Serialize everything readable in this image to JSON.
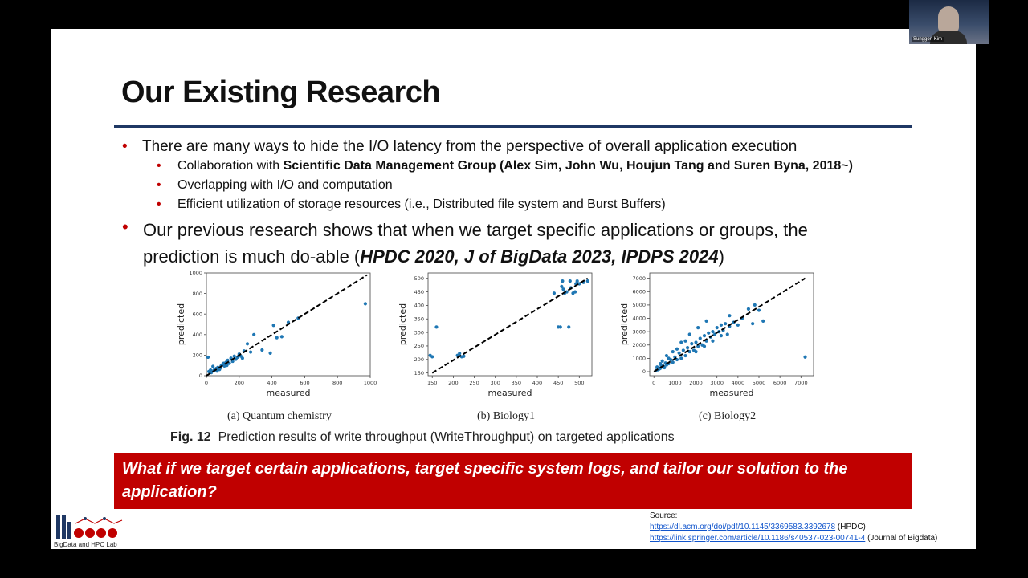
{
  "slide": {
    "title": "Our Existing Research",
    "bullets": {
      "b1": "There are many ways to hide the I/O latency from the perspective of overall application execution",
      "s1_prefix": "Collaboration with ",
      "s1_bold": "Scientific Data Management Group (Alex Sim, John Wu, Houjun Tang and Suren Byna, 2018~)",
      "s2": "Overlapping with I/O and computation",
      "s3": "Efficient utilization of storage resources (i.e., Distributed file system and Burst Buffers)",
      "b2_line1": "Our previous research shows that when we target specific applications or groups, the",
      "b2_line2_prefix": "prediction is much do-able (",
      "b2_line2_bold": "HPDC 2020, J of BigData 2023, IPDPS 2024",
      "b2_line2_suffix": ")"
    },
    "figure_caption_label": "Fig. 12",
    "figure_caption_text": "Prediction results of write throughput (WriteThroughput) on targeted applications",
    "callout": "What if we target certain applications, target specific system logs, and tailor our solution to the application?",
    "logo_text": "BigData and HPC Lab",
    "source": {
      "label": "Source:",
      "link1": "https://dl.acm.org/doi/pdf/10.1145/3369583.3392678",
      "link1_note": "(HPDC)",
      "link2": "https://link.springer.com/article/10.1186/s40537-023-00741-4",
      "link2_note": "(Journal of Bigdata)"
    },
    "webcam_name": "Sunggon Kim",
    "colors": {
      "accent_red": "#c00000",
      "rule_navy": "#1f3864",
      "point": "#1f77b4"
    }
  },
  "chart_data": [
    {
      "type": "scatter",
      "caption": "(a) Quantum chemistry",
      "xlabel": "measured",
      "ylabel": "predicted",
      "xlim": [
        0,
        1000
      ],
      "ylim": [
        0,
        1000
      ],
      "xticks": [
        0,
        200,
        400,
        600,
        800,
        1000
      ],
      "yticks": [
        0,
        200,
        400,
        600,
        800,
        1000
      ],
      "diagonal": [
        [
          0,
          0
        ],
        [
          980,
          980
        ]
      ],
      "points": [
        [
          10,
          180
        ],
        [
          15,
          40
        ],
        [
          25,
          55
        ],
        [
          40,
          90
        ],
        [
          50,
          60
        ],
        [
          60,
          70
        ],
        [
          70,
          80
        ],
        [
          80,
          60
        ],
        [
          90,
          95
        ],
        [
          100,
          110
        ],
        [
          110,
          95
        ],
        [
          120,
          130
        ],
        [
          130,
          150
        ],
        [
          140,
          120
        ],
        [
          150,
          170
        ],
        [
          160,
          140
        ],
        [
          170,
          190
        ],
        [
          180,
          160
        ],
        [
          190,
          180
        ],
        [
          200,
          210
        ],
        [
          210,
          190
        ],
        [
          220,
          170
        ],
        [
          230,
          240
        ],
        [
          250,
          310
        ],
        [
          270,
          230
        ],
        [
          290,
          400
        ],
        [
          340,
          250
        ],
        [
          390,
          220
        ],
        [
          410,
          490
        ],
        [
          430,
          370
        ],
        [
          460,
          380
        ],
        [
          500,
          520
        ],
        [
          560,
          560
        ],
        [
          970,
          700
        ],
        [
          30,
          30
        ],
        [
          45,
          50
        ],
        [
          65,
          45
        ],
        [
          85,
          75
        ],
        [
          105,
          120
        ],
        [
          125,
          100
        ]
      ]
    },
    {
      "type": "scatter",
      "caption": "(b) Biology1",
      "xlabel": "measured",
      "ylabel": "predicted",
      "xlim": [
        140,
        530
      ],
      "ylim": [
        140,
        520
      ],
      "xticks": [
        150,
        200,
        250,
        300,
        350,
        400,
        450,
        500
      ],
      "yticks": [
        150,
        200,
        250,
        300,
        350,
        400,
        450,
        500
      ],
      "diagonal": [
        [
          150,
          150
        ],
        [
          520,
          500
        ]
      ],
      "points": [
        [
          145,
          215
        ],
        [
          150,
          210
        ],
        [
          160,
          320
        ],
        [
          210,
          215
        ],
        [
          215,
          222
        ],
        [
          220,
          210
        ],
        [
          225,
          212
        ],
        [
          440,
          445
        ],
        [
          450,
          320
        ],
        [
          455,
          320
        ],
        [
          458,
          470
        ],
        [
          460,
          490
        ],
        [
          462,
          460
        ],
        [
          465,
          445
        ],
        [
          470,
          450
        ],
        [
          475,
          320
        ],
        [
          478,
          490
        ],
        [
          480,
          465
        ],
        [
          485,
          445
        ],
        [
          490,
          450
        ],
        [
          492,
          480
        ],
        [
          495,
          490
        ],
        [
          500,
          480
        ],
        [
          510,
          485
        ],
        [
          520,
          490
        ]
      ]
    },
    {
      "type": "scatter",
      "caption": "(c) Biology2",
      "xlabel": "measured",
      "ylabel": "predicted",
      "xlim": [
        -200,
        7600
      ],
      "ylim": [
        -300,
        7400
      ],
      "xticks": [
        0,
        1000,
        2000,
        3000,
        4000,
        5000,
        6000,
        7000
      ],
      "yticks": [
        0,
        1000,
        2000,
        3000,
        4000,
        5000,
        6000,
        7000
      ],
      "diagonal": [
        [
          0,
          0
        ],
        [
          7200,
          7000
        ]
      ],
      "points": [
        [
          100,
          100
        ],
        [
          200,
          150
        ],
        [
          300,
          250
        ],
        [
          400,
          350
        ],
        [
          500,
          300
        ],
        [
          600,
          500
        ],
        [
          700,
          600
        ],
        [
          800,
          900
        ],
        [
          900,
          700
        ],
        [
          1000,
          1100
        ],
        [
          1100,
          900
        ],
        [
          1200,
          1400
        ],
        [
          1300,
          1000
        ],
        [
          1400,
          1600
        ],
        [
          1500,
          1200
        ],
        [
          1600,
          1800
        ],
        [
          1700,
          1500
        ],
        [
          1800,
          2100
        ],
        [
          1900,
          1600
        ],
        [
          2000,
          2200
        ],
        [
          2100,
          1900
        ],
        [
          2200,
          2500
        ],
        [
          2300,
          2000
        ],
        [
          2400,
          2700
        ],
        [
          2500,
          2300
        ],
        [
          2600,
          2900
        ],
        [
          2700,
          2600
        ],
        [
          2800,
          3000
        ],
        [
          2900,
          2800
        ],
        [
          3000,
          3300
        ],
        [
          3100,
          3000
        ],
        [
          3200,
          3500
        ],
        [
          3300,
          3100
        ],
        [
          3400,
          3600
        ],
        [
          3500,
          2800
        ],
        [
          3600,
          3400
        ],
        [
          3800,
          3700
        ],
        [
          4000,
          3500
        ],
        [
          4200,
          4000
        ],
        [
          4500,
          4700
        ],
        [
          4800,
          5000
        ],
        [
          5000,
          4600
        ],
        [
          5200,
          3800
        ],
        [
          4700,
          3600
        ],
        [
          7200,
          1100
        ],
        [
          400,
          800
        ],
        [
          600,
          1200
        ],
        [
          900,
          1500
        ],
        [
          1300,
          2200
        ],
        [
          1700,
          2800
        ],
        [
          2100,
          3300
        ],
        [
          2500,
          3800
        ],
        [
          300,
          600
        ],
        [
          700,
          1000
        ],
        [
          1100,
          1700
        ],
        [
          1500,
          2300
        ],
        [
          2000,
          1500
        ],
        [
          2400,
          1900
        ],
        [
          2800,
          2300
        ],
        [
          3200,
          2700
        ],
        [
          3600,
          4200
        ],
        [
          150,
          350
        ],
        [
          250,
          200
        ],
        [
          350,
          450
        ],
        [
          450,
          400
        ],
        [
          550,
          650
        ]
      ]
    }
  ]
}
